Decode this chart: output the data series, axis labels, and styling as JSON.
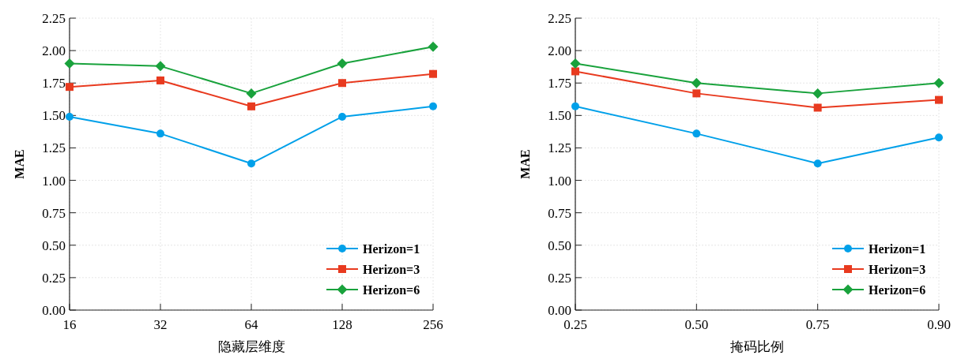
{
  "chart_data": [
    {
      "type": "line",
      "xlabel": "隐藏层维度",
      "ylabel": "MAE",
      "categories": [
        "16",
        "32",
        "64",
        "128",
        "256"
      ],
      "ylim": [
        0,
        2.25
      ],
      "yticks": [
        {
          "value": 0,
          "label": "0.00"
        },
        {
          "value": 0.25,
          "label": "0.25"
        },
        {
          "value": 0.5,
          "label": "0.50"
        },
        {
          "value": 0.75,
          "label": "0.75"
        },
        {
          "value": 1,
          "label": "1.00"
        },
        {
          "value": 1.25,
          "label": "1.25"
        },
        {
          "value": 1.5,
          "label": "1.50"
        },
        {
          "value": 1.75,
          "label": "1.75"
        },
        {
          "value": 2,
          "label": "2.00"
        },
        {
          "value": 2.25,
          "label": "2.25"
        }
      ],
      "grid": true,
      "legend": "bottom right",
      "series": [
        {
          "name": "Herizon=1",
          "color": "#00a0e9",
          "marker": "circle",
          "values": [
            1.49,
            1.36,
            1.13,
            1.49,
            1.57
          ]
        },
        {
          "name": "Herizon=3",
          "color": "#e83a1f",
          "marker": "square",
          "values": [
            1.72,
            1.77,
            1.57,
            1.75,
            1.82
          ]
        },
        {
          "name": "Herizon=6",
          "color": "#19a23c",
          "marker": "diamond",
          "values": [
            1.9,
            1.88,
            1.67,
            1.9,
            2.03
          ]
        }
      ]
    },
    {
      "type": "line",
      "xlabel": "掩码比例",
      "ylabel": "MAE",
      "categories": [
        "0.25",
        "0.50",
        "0.75",
        "0.90"
      ],
      "ylim": [
        0,
        2.25
      ],
      "yticks": [
        {
          "value": 0,
          "label": "0.00"
        },
        {
          "value": 0.25,
          "label": "0.25"
        },
        {
          "value": 0.5,
          "label": "0.50"
        },
        {
          "value": 0.75,
          "label": "0.75"
        },
        {
          "value": 1,
          "label": "1.00"
        },
        {
          "value": 1.25,
          "label": "1.25"
        },
        {
          "value": 1.5,
          "label": "1.50"
        },
        {
          "value": 1.75,
          "label": "1.75"
        },
        {
          "value": 2,
          "label": "2.00"
        },
        {
          "value": 2.25,
          "label": "2.25"
        }
      ],
      "grid": true,
      "legend": "bottom right",
      "series": [
        {
          "name": "Herizon=1",
          "color": "#00a0e9",
          "marker": "circle",
          "values": [
            1.57,
            1.36,
            1.13,
            1.33
          ]
        },
        {
          "name": "Herizon=3",
          "color": "#e83a1f",
          "marker": "square",
          "values": [
            1.84,
            1.67,
            1.56,
            1.62
          ]
        },
        {
          "name": "Herizon=6",
          "color": "#19a23c",
          "marker": "diamond",
          "values": [
            1.9,
            1.75,
            1.67,
            1.75
          ]
        }
      ]
    }
  ]
}
